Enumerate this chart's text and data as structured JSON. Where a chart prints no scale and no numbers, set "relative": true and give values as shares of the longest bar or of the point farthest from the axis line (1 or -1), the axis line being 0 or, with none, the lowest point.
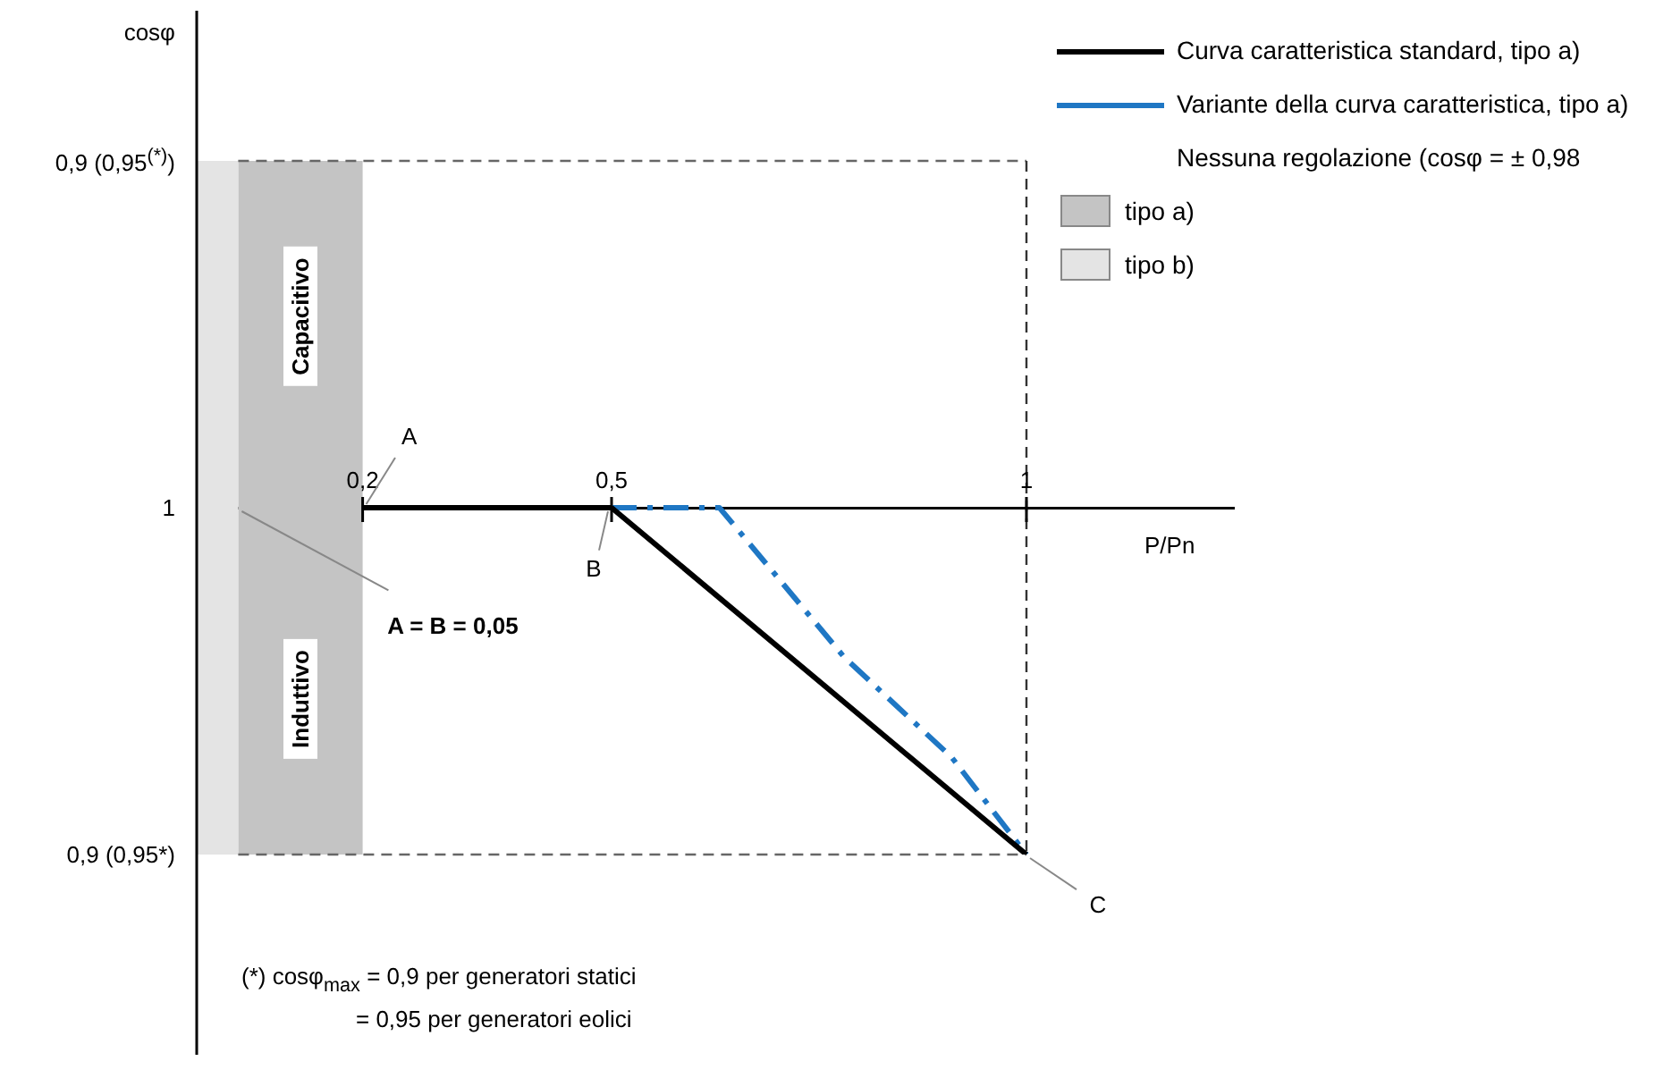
{
  "chart_data": {
    "type": "line",
    "xlabel": "P/Pn",
    "relative": true,
    "xlim": [
      0,
      1.25
    ],
    "xticks": [
      {
        "value": 0.2,
        "label": "0,2"
      },
      {
        "value": 0.5,
        "label": "0,5"
      },
      {
        "value": 1,
        "label": "1"
      }
    ],
    "grid": false,
    "legend": "right",
    "marker": "none",
    "series": [
      {
        "name": "Curva caratteristica standard, tipo a)",
        "color": "#000000",
        "line_style": "solid",
        "x": [
          0.2,
          0.5,
          1
        ],
        "values": [
          0,
          0,
          -1
        ]
      },
      {
        "name": "Variante della curva caratteristica, tipo a)",
        "color": "#1f77c4",
        "line_style": "dashdot",
        "x": [
          0.5,
          0.63,
          0.78,
          0.91,
          1
        ],
        "values": [
          0,
          0,
          -0.43,
          -0.72,
          -1
        ]
      }
    ],
    "legend_title": "Nessuna regolazione (cosφ = ± 0,98",
    "bands": [
      {
        "axis": "x",
        "from": 0.05,
        "to": 0.2,
        "color": "#c4c4c4"
      },
      {
        "axis": "x",
        "from": 0,
        "to": 0.05,
        "color": "#e4e4e4"
      }
    ],
    "ref_lines": [
      {
        "axis": "y",
        "value": 1,
        "line_style": "dashed",
        "color": "#666666"
      },
      {
        "axis": "y",
        "value": -1,
        "line_style": "dashed",
        "color": "#666666"
      },
      {
        "axis": "x",
        "value": 1,
        "line_style": "dashed",
        "color": "#333333"
      }
    ],
    "annotations": [
      "Capacitivo",
      "Induttivo",
      {
        "text": "0,9 (0,95$^{(*)}$)",
        "x": 0,
        "y": 1
      },
      {
        "text": "1",
        "x": 0,
        "y": 0
      },
      {
        "text": "0,9 (0,95*)",
        "x": 0,
        "y": -1
      },
      {
        "text": "A",
        "x": 0.2,
        "y": 0
      },
      {
        "text": "B",
        "x": 0.5,
        "y": 0
      },
      {
        "text": "C",
        "x": 1,
        "y": -1
      },
      {
        "text": "A = B = 0,05",
        "x": 0.05,
        "y": 0
      },
      "(*) cosφ$_{max}$ = 0,9 per generatori statici",
      "= 0,95 per generatori eolici",
      "cosφ",
      "tipo a)",
      "tipo b)"
    ]
  }
}
